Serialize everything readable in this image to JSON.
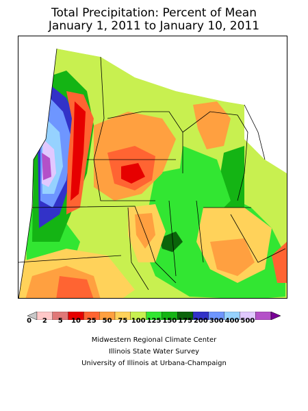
{
  "title": {
    "line1": "Total Precipitation: Percent of Mean",
    "line2": "January 1, 2011 to January 10, 2011"
  },
  "legend": {
    "bins": [
      {
        "label": "0",
        "color": "#c8c8c8"
      },
      {
        "label": "2",
        "color": "#ffc8c8"
      },
      {
        "label": "5",
        "color": "#e07878"
      },
      {
        "label": "10",
        "color": "#e60000"
      },
      {
        "label": "25",
        "color": "#ff6432"
      },
      {
        "label": "50",
        "color": "#ffa040"
      },
      {
        "label": "75",
        "color": "#ffd25a"
      },
      {
        "label": "100",
        "color": "#c8f050"
      },
      {
        "label": "125",
        "color": "#32e632"
      },
      {
        "label": "150",
        "color": "#14b414"
      },
      {
        "label": "175",
        "color": "#0a640a"
      },
      {
        "label": "200",
        "color": "#3232c8"
      },
      {
        "label": "300",
        "color": "#6e96ff"
      },
      {
        "label": "400",
        "color": "#96d2ff"
      },
      {
        "label": "500",
        "color": "#e1c8ff"
      },
      {
        "label": "",
        "color": "#b450c8"
      },
      {
        "label": "",
        "color": "#780096"
      }
    ]
  },
  "credits": {
    "line1": "Midwestern Regional Climate Center",
    "line2": "Illinois State Water Survey",
    "line3": "University of Illinois at Urbana-Champaign"
  }
}
